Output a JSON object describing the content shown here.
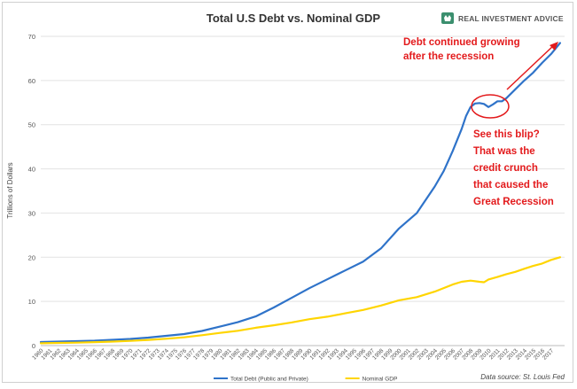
{
  "brand": {
    "name": "REAL INVESTMENT ADVICE",
    "logo_color": "#3b8f6e",
    "icon": "bull-bear-logo-icon"
  },
  "source_note": "Data source: St. Louis Fed",
  "annotations": {
    "top": [
      "Debt continued growing",
      "after the recession"
    ],
    "side": [
      "See this blip?",
      "That was the",
      "credit crunch",
      "that caused the",
      "Great Recession"
    ],
    "color": "#e31a1c"
  },
  "chart_data": {
    "type": "line",
    "title": "Total U.S Debt vs. Nominal GDP",
    "xlabel": "",
    "ylabel": "Trillions of Dollars",
    "ylim": [
      0,
      70
    ],
    "yticks": [
      0,
      10,
      20,
      30,
      40,
      50,
      60,
      70
    ],
    "xlim": [
      1960,
      2018.5
    ],
    "xticks": [
      "1960",
      "1961",
      "1962",
      "1963",
      "1964",
      "1965",
      "1966",
      "1967",
      "1968",
      "1969",
      "1970",
      "1971",
      "1972",
      "1973",
      "1974",
      "1975",
      "1976",
      "1977",
      "1978",
      "1979",
      "1980",
      "1981",
      "1982",
      "1983",
      "1984",
      "1985",
      "1986",
      "1987",
      "1988",
      "1989",
      "1990",
      "1991",
      "1992",
      "1993",
      "1994",
      "1995",
      "1996",
      "1997",
      "1998",
      "1999",
      "2000",
      "2001",
      "2002",
      "2003",
      "2004",
      "2005",
      "2006",
      "2007",
      "2008",
      "2009",
      "2010",
      "2011",
      "2012",
      "2013",
      "2014",
      "2015",
      "2016",
      "2017"
    ],
    "grid": true,
    "legend_position": "bottom",
    "series": [
      {
        "name": "Total Debt (Public and Private)",
        "color": "#2f73c9",
        "x": [
          1960,
          1962,
          1964,
          1966,
          1968,
          1970,
          1972,
          1974,
          1976,
          1978,
          1980,
          1982,
          1984,
          1986,
          1988,
          1990,
          1992,
          1994,
          1996,
          1998,
          2000,
          2002,
          2004,
          2005,
          2006,
          2007,
          2007.5,
          2008,
          2008.5,
          2009,
          2009.5,
          2010,
          2010.5,
          2011,
          2011.5,
          2012,
          2013,
          2014,
          2015,
          2016,
          2017,
          2018
        ],
        "y": [
          0.8,
          0.9,
          1.0,
          1.1,
          1.3,
          1.5,
          1.8,
          2.2,
          2.6,
          3.3,
          4.3,
          5.3,
          6.6,
          8.6,
          10.8,
          13.0,
          15.0,
          17.0,
          19.0,
          22.0,
          26.5,
          30.0,
          36.0,
          39.5,
          44.0,
          49.0,
          52.0,
          54.0,
          54.8,
          54.9,
          54.7,
          54.0,
          54.6,
          55.3,
          55.3,
          56.0,
          58.0,
          60.0,
          61.8,
          64.0,
          66.0,
          68.5
        ]
      },
      {
        "name": "Nominal GDP",
        "color": "#ffd500",
        "x": [
          1960,
          1962,
          1964,
          1966,
          1968,
          1970,
          1972,
          1974,
          1976,
          1978,
          1980,
          1982,
          1984,
          1986,
          1988,
          1990,
          1992,
          1994,
          1996,
          1998,
          2000,
          2002,
          2004,
          2006,
          2007,
          2008,
          2009,
          2009.5,
          2010,
          2011,
          2012,
          2013,
          2014,
          2015,
          2016,
          2017,
          2018
        ],
        "y": [
          0.53,
          0.6,
          0.66,
          0.79,
          0.91,
          1.07,
          1.28,
          1.55,
          1.87,
          2.35,
          2.86,
          3.34,
          4.04,
          4.59,
          5.24,
          5.98,
          6.54,
          7.31,
          8.07,
          9.06,
          10.25,
          10.98,
          12.21,
          13.81,
          14.45,
          14.71,
          14.45,
          14.35,
          14.96,
          15.52,
          16.16,
          16.69,
          17.39,
          18.04,
          18.57,
          19.39,
          20.0
        ]
      }
    ]
  }
}
